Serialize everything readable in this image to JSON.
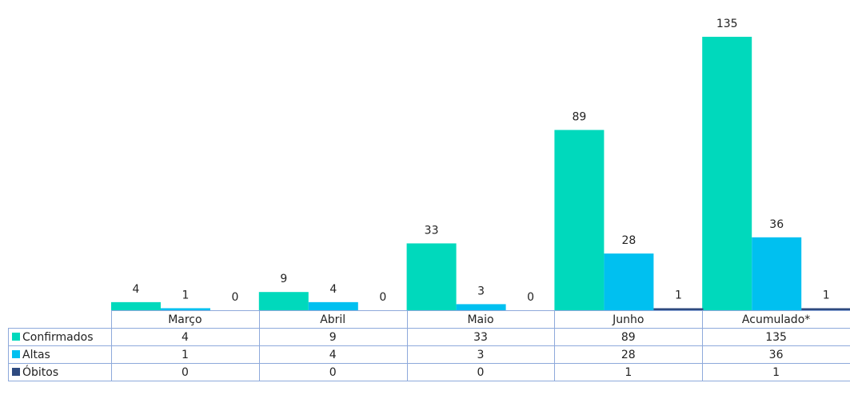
{
  "chart_data": {
    "type": "bar",
    "categories": [
      "Março",
      "Abril",
      "Maio",
      "Junho",
      "Acumulado*"
    ],
    "series": [
      {
        "name": "Confirmados",
        "color": "#00D9BC",
        "values": [
          4,
          9,
          33,
          89,
          135
        ]
      },
      {
        "name": "Altas",
        "color": "#00C0F0",
        "values": [
          1,
          4,
          3,
          28,
          36
        ]
      },
      {
        "name": "Óbitos",
        "color": "#2E4A7F",
        "values": [
          0,
          0,
          0,
          1,
          1
        ]
      }
    ],
    "ylim": [
      0,
      135
    ],
    "data_labels": true,
    "legend": "data-table-left",
    "grid": false,
    "table_border_color": "#8EA9DB"
  }
}
